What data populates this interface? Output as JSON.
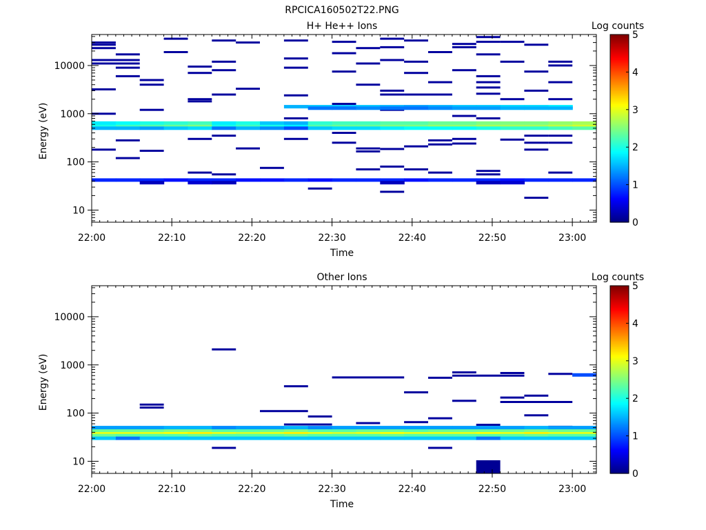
{
  "figure_title": "RPCICA160502T22.PNG",
  "chart_data": [
    {
      "type": "heatmap",
      "title": "H+ He++ Ions",
      "xlabel": "Time",
      "ylabel": "Energy (eV)",
      "x_ticks": [
        "22:00",
        "22:10",
        "22:20",
        "22:30",
        "22:40",
        "22:50",
        "23:00"
      ],
      "y_ticks": [
        "10",
        "100",
        "1000",
        "10000"
      ],
      "y_scale": "log",
      "xlim": [
        "22:00",
        "23:03"
      ],
      "ylim": [
        5.6,
        44000
      ],
      "colorbar": {
        "label": "Log counts",
        "range": [
          0,
          5
        ],
        "ticks": [
          "0",
          "1",
          "2",
          "3",
          "4",
          "5"
        ],
        "colormap": "jet"
      },
      "time_bins": [
        "22:00",
        "22:03",
        "22:06",
        "22:09",
        "22:12",
        "22:15",
        "22:18",
        "22:21",
        "22:24",
        "22:27",
        "22:30",
        "22:33",
        "22:36",
        "22:39",
        "22:42",
        "22:45",
        "22:48",
        "22:51",
        "22:54",
        "22:57",
        "23:00"
      ],
      "bands": [
        {
          "e": 565,
          "v": [
            2.0,
            2.2,
            2.3,
            2.4,
            2.5,
            2.0,
            2.2,
            2.0,
            1.8,
            2.3,
            2.4,
            2.4,
            2.5,
            2.5,
            2.6,
            2.6,
            2.7,
            2.7,
            2.7,
            2.8,
            2.9
          ]
        },
        {
          "e": 640,
          "v": [
            1.8,
            1.9,
            2.0,
            2.1,
            2.2,
            1.8,
            2.0,
            1.6,
            1.5,
            2.1,
            2.2,
            2.2,
            2.3,
            2.3,
            2.4,
            2.4,
            2.5,
            2.5,
            2.5,
            2.6,
            2.7
          ]
        },
        {
          "e": 500,
          "v": [
            1.5,
            1.5,
            1.4,
            1.6,
            1.7,
            1.2,
            1.5,
            1.3,
            1.0,
            1.6,
            1.7,
            1.7,
            1.8,
            1.9,
            1.9,
            1.9,
            2.0,
            2.1,
            2.1,
            2.2,
            2.3
          ]
        },
        {
          "e": 1400,
          "v": [
            0,
            0,
            0,
            0,
            0,
            0,
            0,
            0,
            1.5,
            1.6,
            1.6,
            1.6,
            1.5,
            1.4,
            1.5,
            1.6,
            1.6,
            1.7,
            1.7,
            1.8,
            0
          ]
        },
        {
          "e": 1300,
          "v": [
            0,
            0,
            0,
            0,
            0,
            0,
            0,
            0,
            0,
            1.2,
            1.2,
            1.3,
            1.2,
            1.2,
            1.3,
            1.4,
            1.4,
            1.5,
            1.5,
            1.5,
            0
          ]
        },
        {
          "e": 42,
          "v": [
            0.8,
            0.8,
            0.8,
            0.7,
            0.8,
            0.8,
            0.7,
            0.7,
            0.8,
            0.7,
            0.8,
            0.8,
            0.8,
            0.7,
            0.8,
            0.8,
            0.8,
            0.7,
            0.8,
            0.8,
            0.8
          ]
        },
        {
          "e": 37,
          "v": [
            0,
            0,
            0.3,
            0,
            0.4,
            0.3,
            0,
            0,
            0,
            0,
            0,
            0,
            0.3,
            0,
            0,
            0,
            0.3,
            0.4,
            0,
            0,
            0
          ]
        }
      ],
      "sparse": [
        {
          "e": 30000,
          "from": 0,
          "to": 1
        },
        {
          "e": 27000,
          "from": 0,
          "to": 1
        },
        {
          "e": 23000,
          "from": 0,
          "to": 1
        },
        {
          "e": 17000,
          "from": 1,
          "to": 2
        },
        {
          "e": 13000,
          "from": 0,
          "to": 2
        },
        {
          "e": 11000,
          "from": 0,
          "to": 2
        },
        {
          "e": 9000,
          "from": 1,
          "to": 2
        },
        {
          "e": 6000,
          "from": 1,
          "to": 2
        },
        {
          "e": 5000,
          "from": 2,
          "to": 3
        },
        {
          "e": 4000,
          "from": 2,
          "to": 3
        },
        {
          "e": 3200,
          "from": 0,
          "to": 1
        },
        {
          "e": 2000,
          "from": 4,
          "to": 5
        },
        {
          "e": 1200,
          "from": 2,
          "to": 3
        },
        {
          "e": 1000,
          "from": 0,
          "to": 1
        },
        {
          "e": 280,
          "from": 1,
          "to": 2
        },
        {
          "e": 180,
          "from": 0,
          "to": 1
        },
        {
          "e": 170,
          "from": 2,
          "to": 3
        },
        {
          "e": 120,
          "from": 1,
          "to": 2
        },
        {
          "e": 36000,
          "from": 3,
          "to": 4
        },
        {
          "e": 19000,
          "from": 3,
          "to": 4
        },
        {
          "e": 7000,
          "from": 4,
          "to": 5
        },
        {
          "e": 9500,
          "from": 4,
          "to": 5
        },
        {
          "e": 1800,
          "from": 4,
          "to": 5
        },
        {
          "e": 300,
          "from": 4,
          "to": 5
        },
        {
          "e": 33000,
          "from": 5,
          "to": 6
        },
        {
          "e": 12000,
          "from": 5,
          "to": 6
        },
        {
          "e": 8000,
          "from": 5,
          "to": 6
        },
        {
          "e": 2500,
          "from": 5,
          "to": 6
        },
        {
          "e": 350,
          "from": 5,
          "to": 6
        },
        {
          "e": 60,
          "from": 4,
          "to": 5
        },
        {
          "e": 55,
          "from": 5,
          "to": 6
        },
        {
          "e": 30000,
          "from": 6,
          "to": 7
        },
        {
          "e": 3300,
          "from": 6,
          "to": 7
        },
        {
          "e": 190,
          "from": 6,
          "to": 7
        },
        {
          "e": 75,
          "from": 7,
          "to": 8
        },
        {
          "e": 33000,
          "from": 8,
          "to": 9
        },
        {
          "e": 14000,
          "from": 8,
          "to": 9
        },
        {
          "e": 9000,
          "from": 8,
          "to": 9
        },
        {
          "e": 2400,
          "from": 8,
          "to": 9
        },
        {
          "e": 800,
          "from": 8,
          "to": 9
        },
        {
          "e": 300,
          "from": 8,
          "to": 9
        },
        {
          "e": 28,
          "from": 9,
          "to": 10
        },
        {
          "e": 31000,
          "from": 10,
          "to": 11
        },
        {
          "e": 18000,
          "from": 10,
          "to": 11
        },
        {
          "e": 7500,
          "from": 10,
          "to": 11
        },
        {
          "e": 1600,
          "from": 10,
          "to": 11
        },
        {
          "e": 400,
          "from": 10,
          "to": 11
        },
        {
          "e": 250,
          "from": 10,
          "to": 11
        },
        {
          "e": 23000,
          "from": 11,
          "to": 12
        },
        {
          "e": 11000,
          "from": 11,
          "to": 12
        },
        {
          "e": 4000,
          "from": 11,
          "to": 12
        },
        {
          "e": 190,
          "from": 11,
          "to": 12
        },
        {
          "e": 165,
          "from": 11,
          "to": 12
        },
        {
          "e": 70,
          "from": 11,
          "to": 12
        },
        {
          "e": 36000,
          "from": 12,
          "to": 13
        },
        {
          "e": 24000,
          "from": 12,
          "to": 13
        },
        {
          "e": 13000,
          "from": 12,
          "to": 13
        },
        {
          "e": 3000,
          "from": 12,
          "to": 13
        },
        {
          "e": 2500,
          "from": 12,
          "to": 13
        },
        {
          "e": 1200,
          "from": 12,
          "to": 13
        },
        {
          "e": 185,
          "from": 12,
          "to": 13
        },
        {
          "e": 80,
          "from": 12,
          "to": 13
        },
        {
          "e": 24,
          "from": 12,
          "to": 13
        },
        {
          "e": 33000,
          "from": 13,
          "to": 14
        },
        {
          "e": 12000,
          "from": 13,
          "to": 14
        },
        {
          "e": 7000,
          "from": 13,
          "to": 14
        },
        {
          "e": 2500,
          "from": 13,
          "to": 14
        },
        {
          "e": 210,
          "from": 13,
          "to": 14
        },
        {
          "e": 70,
          "from": 13,
          "to": 14
        },
        {
          "e": 19000,
          "from": 14,
          "to": 15
        },
        {
          "e": 4500,
          "from": 14,
          "to": 15
        },
        {
          "e": 2500,
          "from": 14,
          "to": 15
        },
        {
          "e": 280,
          "from": 14,
          "to": 15
        },
        {
          "e": 230,
          "from": 14,
          "to": 15
        },
        {
          "e": 60,
          "from": 14,
          "to": 15
        },
        {
          "e": 28000,
          "from": 15,
          "to": 16
        },
        {
          "e": 24000,
          "from": 15,
          "to": 16
        },
        {
          "e": 8000,
          "from": 15,
          "to": 16
        },
        {
          "e": 900,
          "from": 15,
          "to": 16
        },
        {
          "e": 300,
          "from": 15,
          "to": 16
        },
        {
          "e": 240,
          "from": 15,
          "to": 16
        },
        {
          "e": 39000,
          "from": 16,
          "to": 17
        },
        {
          "e": 31000,
          "from": 16,
          "to": 17
        },
        {
          "e": 17000,
          "from": 16,
          "to": 17
        },
        {
          "e": 6000,
          "from": 16,
          "to": 17
        },
        {
          "e": 4500,
          "from": 16,
          "to": 17
        },
        {
          "e": 3500,
          "from": 16,
          "to": 17
        },
        {
          "e": 2600,
          "from": 16,
          "to": 17
        },
        {
          "e": 800,
          "from": 16,
          "to": 17
        },
        {
          "e": 65,
          "from": 16,
          "to": 17
        },
        {
          "e": 55,
          "from": 16,
          "to": 17
        },
        {
          "e": 31000,
          "from": 17,
          "to": 18
        },
        {
          "e": 12000,
          "from": 17,
          "to": 18
        },
        {
          "e": 2000,
          "from": 17,
          "to": 18
        },
        {
          "e": 290,
          "from": 17,
          "to": 18
        },
        {
          "e": 27000,
          "from": 18,
          "to": 19
        },
        {
          "e": 7500,
          "from": 18,
          "to": 19
        },
        {
          "e": 3000,
          "from": 18,
          "to": 19
        },
        {
          "e": 350,
          "from": 18,
          "to": 19
        },
        {
          "e": 250,
          "from": 18,
          "to": 19
        },
        {
          "e": 180,
          "from": 18,
          "to": 19
        },
        {
          "e": 18,
          "from": 18,
          "to": 19
        },
        {
          "e": 12000,
          "from": 19,
          "to": 20
        },
        {
          "e": 10000,
          "from": 19,
          "to": 20
        },
        {
          "e": 4500,
          "from": 19,
          "to": 20
        },
        {
          "e": 2000,
          "from": 19,
          "to": 20
        },
        {
          "e": 350,
          "from": 19,
          "to": 20
        },
        {
          "e": 250,
          "from": 19,
          "to": 20
        },
        {
          "e": 60,
          "from": 19,
          "to": 20
        }
      ]
    },
    {
      "type": "heatmap",
      "title": "Other Ions",
      "xlabel": "Time",
      "ylabel": "Energy (eV)",
      "x_ticks": [
        "22:00",
        "22:10",
        "22:20",
        "22:30",
        "22:40",
        "22:50",
        "23:00"
      ],
      "y_ticks": [
        "10",
        "100",
        "1000",
        "10000"
      ],
      "y_scale": "log",
      "xlim": [
        "22:00",
        "23:03"
      ],
      "ylim": [
        5.6,
        44000
      ],
      "colorbar": {
        "label": "Log counts",
        "range": [
          0,
          5
        ],
        "ticks": [
          "0",
          "1",
          "2",
          "3",
          "4",
          "5"
        ],
        "colormap": "jet"
      },
      "time_bins": [
        "22:00",
        "22:03",
        "22:06",
        "22:09",
        "22:12",
        "22:15",
        "22:18",
        "22:21",
        "22:24",
        "22:27",
        "22:30",
        "22:33",
        "22:36",
        "22:39",
        "22:42",
        "22:45",
        "22:48",
        "22:51",
        "22:54",
        "22:57",
        "23:00"
      ],
      "bands": [
        {
          "e": 39,
          "v": [
            3.0,
            3.0,
            3.0,
            3.1,
            3.2,
            3.0,
            2.9,
            3.0,
            3.2,
            3.0,
            2.9,
            3.0,
            3.1,
            3.0,
            3.0,
            3.0,
            3.1,
            3.0,
            3.2,
            3.0,
            3.0
          ]
        },
        {
          "e": 44,
          "v": [
            2.4,
            2.4,
            2.4,
            2.5,
            2.5,
            2.3,
            2.3,
            2.4,
            2.5,
            2.3,
            2.3,
            2.4,
            2.4,
            2.3,
            2.4,
            2.4,
            2.4,
            2.4,
            2.5,
            2.4,
            2.4
          ]
        },
        {
          "e": 34,
          "v": [
            2.4,
            2.3,
            2.3,
            2.3,
            2.4,
            2.3,
            2.3,
            2.3,
            2.4,
            2.3,
            2.3,
            2.3,
            2.4,
            2.3,
            2.3,
            2.3,
            2.3,
            2.3,
            2.4,
            2.3,
            2.3
          ]
        },
        {
          "e": 50,
          "v": [
            1.4,
            1.4,
            1.4,
            1.5,
            1.5,
            1.3,
            1.4,
            1.4,
            1.5,
            1.3,
            1.4,
            1.4,
            1.4,
            1.4,
            1.4,
            1.4,
            1.4,
            1.4,
            1.5,
            1.4,
            1.4
          ]
        },
        {
          "e": 30,
          "v": [
            1.6,
            1.2,
            1.6,
            1.6,
            1.6,
            1.6,
            1.6,
            1.6,
            1.6,
            1.6,
            1.6,
            1.6,
            1.6,
            1.6,
            1.6,
            1.6,
            1.2,
            1.6,
            1.6,
            1.6,
            1.6
          ]
        },
        {
          "e": 620,
          "v": [
            0,
            0,
            0,
            0,
            0,
            0,
            0,
            0,
            0,
            0,
            0,
            0,
            0,
            0,
            0,
            0,
            0,
            0,
            0,
            0,
            1.0
          ]
        }
      ],
      "sparse": [
        {
          "e": 150,
          "from": 2,
          "to": 3
        },
        {
          "e": 130,
          "from": 2,
          "to": 3
        },
        {
          "e": 2100,
          "from": 5,
          "to": 6
        },
        {
          "e": 19,
          "from": 5,
          "to": 6
        },
        {
          "e": 110,
          "from": 7,
          "to": 9
        },
        {
          "e": 360,
          "from": 8,
          "to": 9
        },
        {
          "e": 58,
          "from": 8,
          "to": 10
        },
        {
          "e": 85,
          "from": 9,
          "to": 10
        },
        {
          "e": 550,
          "from": 10,
          "to": 13
        },
        {
          "e": 62,
          "from": 11,
          "to": 12
        },
        {
          "e": 270,
          "from": 13,
          "to": 14
        },
        {
          "e": 65,
          "from": 13,
          "to": 14
        },
        {
          "e": 540,
          "from": 14,
          "to": 15
        },
        {
          "e": 78,
          "from": 14,
          "to": 15
        },
        {
          "e": 19,
          "from": 14,
          "to": 15
        },
        {
          "e": 700,
          "from": 15,
          "to": 16
        },
        {
          "e": 600,
          "from": 15,
          "to": 18
        },
        {
          "e": 180,
          "from": 15,
          "to": 16
        },
        {
          "e": 57,
          "from": 16,
          "to": 17
        },
        {
          "e": 680,
          "from": 17,
          "to": 18
        },
        {
          "e": 210,
          "from": 17,
          "to": 18
        },
        {
          "e": 170,
          "from": 17,
          "to": 20
        },
        {
          "e": 230,
          "from": 18,
          "to": 19
        },
        {
          "e": 90,
          "from": 18,
          "to": 19
        },
        {
          "e": 650,
          "from": 19,
          "to": 20
        },
        {
          "e": 52,
          "from": 19,
          "to": 20
        }
      ],
      "blocks": [
        {
          "from": 16,
          "to": 17,
          "e_low": 5.6,
          "e_high": 10.5
        }
      ]
    }
  ]
}
